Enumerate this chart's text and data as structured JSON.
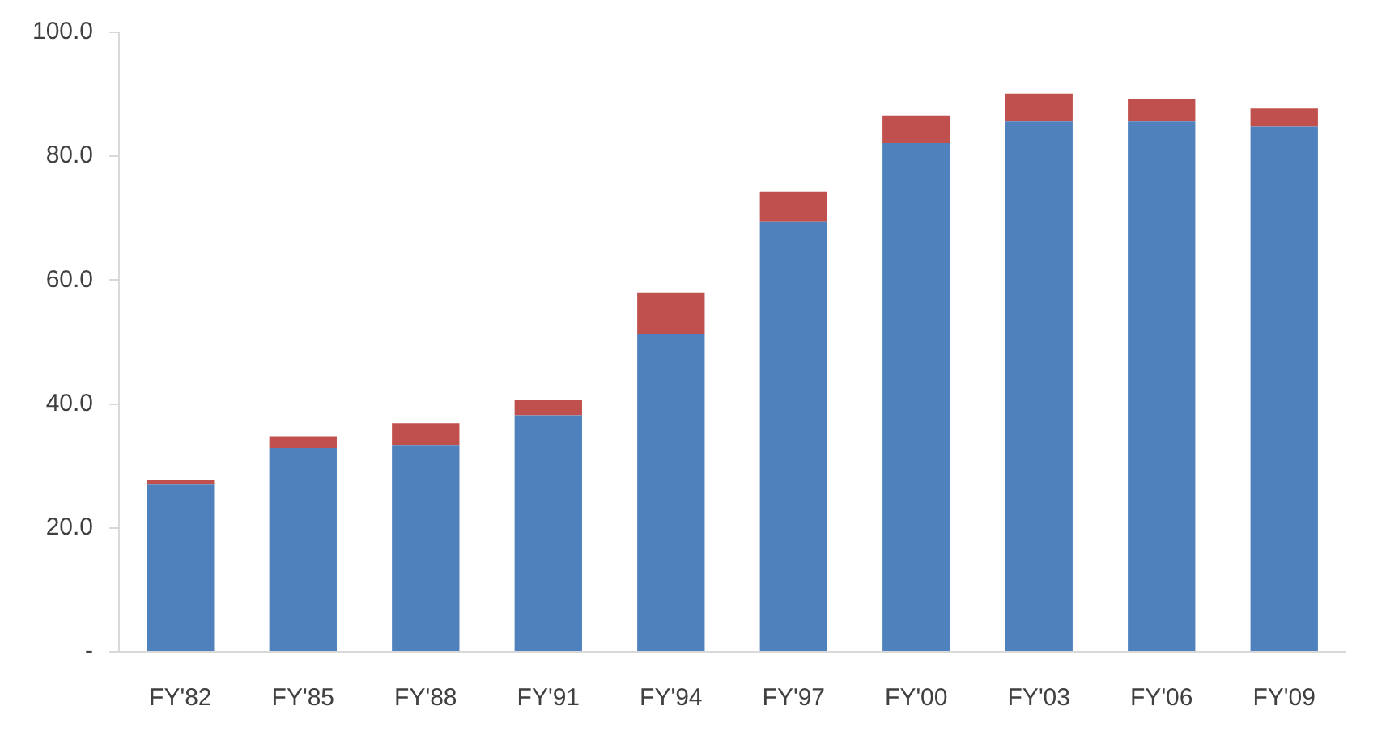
{
  "chart_data": {
    "type": "bar",
    "stacked": true,
    "categories": [
      "FY'82",
      "FY'85",
      "FY'88",
      "FY'91",
      "FY'94",
      "FY'97",
      "FY'00",
      "FY'03",
      "FY'06",
      "FY'09"
    ],
    "series": [
      {
        "color": "#4f81bd",
        "values": [
          27.0,
          32.9,
          33.4,
          38.2,
          51.3,
          69.5,
          82.1,
          85.6,
          85.6,
          84.8
        ]
      },
      {
        "color": "#c0504d",
        "values": [
          0.8,
          1.9,
          3.5,
          2.4,
          6.7,
          4.8,
          4.5,
          4.5,
          3.7,
          2.9
        ]
      }
    ],
    "ylim": [
      0,
      100
    ],
    "yticks": [
      {
        "value": 0,
        "label": "-"
      },
      {
        "value": 20,
        "label": "20.0"
      },
      {
        "value": 40,
        "label": "40.0"
      },
      {
        "value": 60,
        "label": "60.0"
      },
      {
        "value": 80,
        "label": "80.0"
      },
      {
        "value": 100,
        "label": "100.0"
      }
    ],
    "grid": false,
    "legend": false
  }
}
